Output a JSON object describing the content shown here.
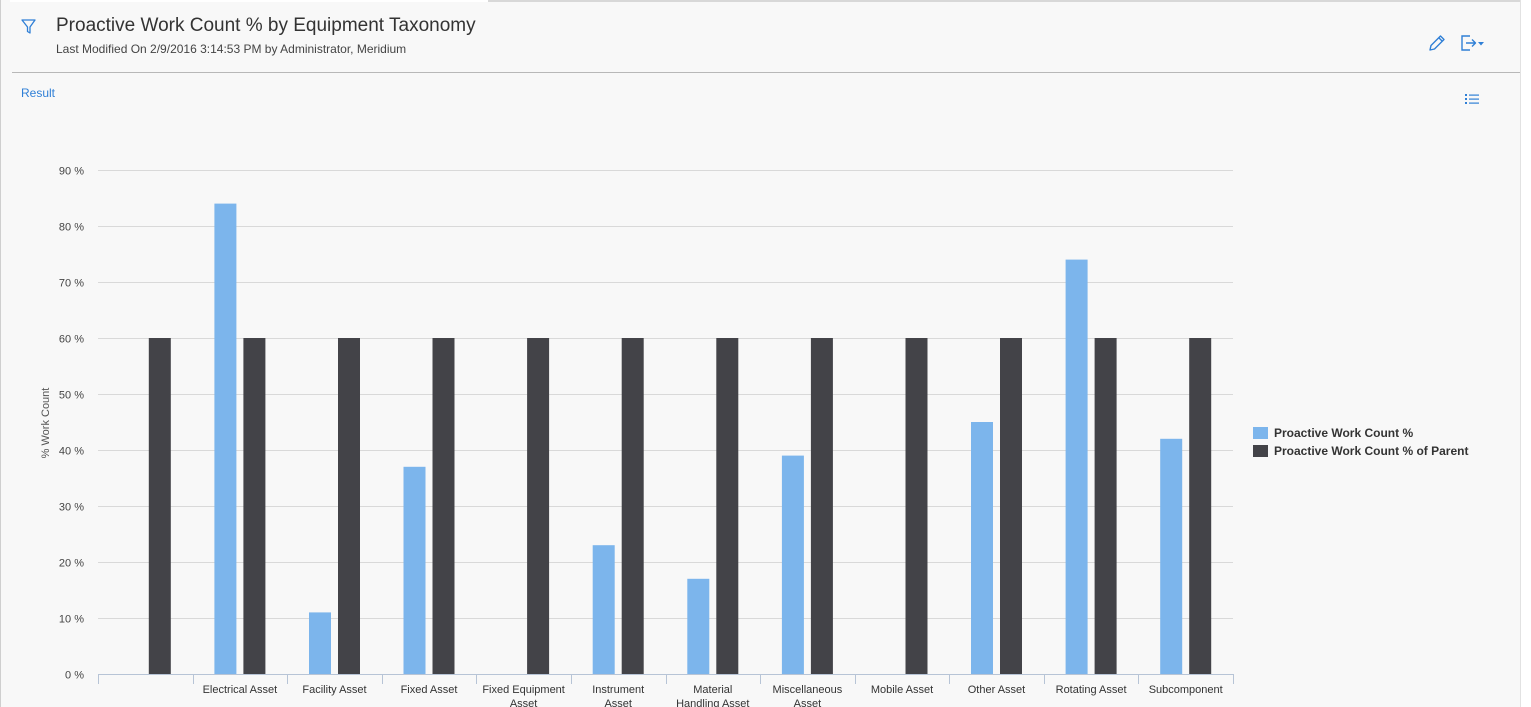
{
  "header": {
    "title": "Proactive Work Count % by Equipment Taxonomy",
    "subtitle": "Last Modified On 2/9/2016 3:14:53 PM by Administrator, Meridium"
  },
  "toolbar": {
    "filter_icon": "filter-icon",
    "edit_icon": "pencil-icon",
    "export_icon": "export-icon",
    "list_icon": "list-icon"
  },
  "result_link": "Result",
  "colors": {
    "series1": "#7cb5ec",
    "series2": "#434348",
    "accent": "#2f7fd6"
  },
  "chart_data": {
    "type": "bar",
    "ylabel": "% Work Count",
    "ylim": [
      0,
      90
    ],
    "yticks": [
      "0 %",
      "10 %",
      "20 %",
      "30 %",
      "40 %",
      "50 %",
      "60 %",
      "70 %",
      "80 %",
      "90 %"
    ],
    "y_tick_values": [
      0,
      10,
      20,
      30,
      40,
      50,
      60,
      70,
      80,
      90
    ],
    "grid": true,
    "legend_position": "right",
    "categories": [
      "",
      "Electrical Asset",
      "Facility Asset",
      "Fixed Asset",
      "Fixed Equipment Asset",
      "Instrument Asset",
      "Material Handling Asset",
      "Miscellaneous Asset",
      "Mobile Asset",
      "Other Asset",
      "Rotating Asset",
      "Subcomponent"
    ],
    "category_label_lines": [
      [
        ""
      ],
      [
        "Electrical Asset"
      ],
      [
        "Facility Asset"
      ],
      [
        "Fixed Asset"
      ],
      [
        "Fixed Equipment",
        "Asset"
      ],
      [
        "Instrument",
        "Asset"
      ],
      [
        "Material",
        "Handling Asset"
      ],
      [
        "Miscellaneous",
        "Asset"
      ],
      [
        "Mobile Asset"
      ],
      [
        "Other Asset"
      ],
      [
        "Rotating Asset"
      ],
      [
        "Subcomponent"
      ]
    ],
    "series": [
      {
        "name": "Proactive Work Count %",
        "values": [
          0,
          84,
          11,
          37,
          0,
          23,
          17,
          39,
          0,
          45,
          74,
          42
        ]
      },
      {
        "name": "Proactive Work Count % of Parent",
        "values": [
          60,
          60,
          60,
          60,
          60,
          60,
          60,
          60,
          60,
          60,
          60,
          60
        ]
      }
    ]
  }
}
